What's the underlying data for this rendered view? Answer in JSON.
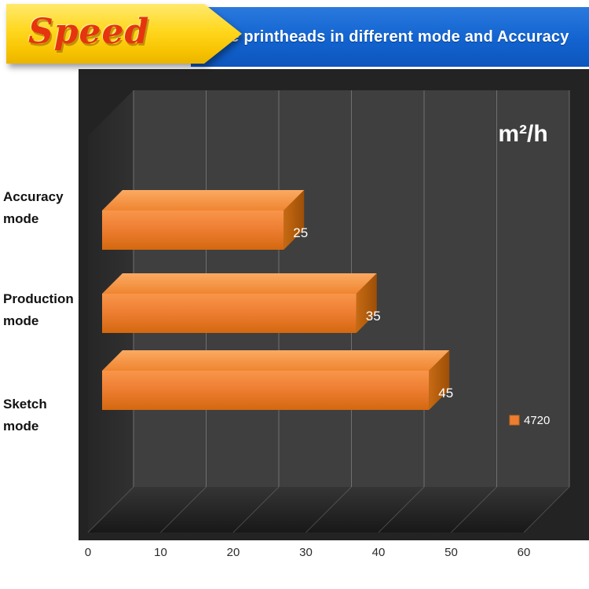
{
  "header": {
    "ribbon_label": "Speed",
    "banner_title": "The printheads in different mode and Accuracy"
  },
  "chart_data": {
    "type": "bar",
    "orientation": "horizontal",
    "style": "3d",
    "title": "The printheads in different mode and Accuracy",
    "unit_label": "m²/h",
    "categories": [
      "Accuracy mode",
      "Production mode",
      "Sketch mode"
    ],
    "series": [
      {
        "name": "4720",
        "values": [
          25,
          35,
          45
        ],
        "color": "#ED7D31"
      }
    ],
    "axis": {
      "min": 0,
      "max": 60,
      "step": 10,
      "ticks": [
        0,
        10,
        20,
        30,
        40,
        50,
        60
      ]
    },
    "legend": {
      "position": "right",
      "entries": [
        "4720"
      ]
    },
    "grid": true,
    "colors": {
      "bar": "#ED7D31",
      "panel_background": "#232323",
      "back_wall": "#3f3f3f",
      "value_label": "#ffffff",
      "banner_blue": "#1263d0",
      "ribbon_yellow": "#ffd71e",
      "ribbon_text_red": "#e6350e"
    }
  }
}
